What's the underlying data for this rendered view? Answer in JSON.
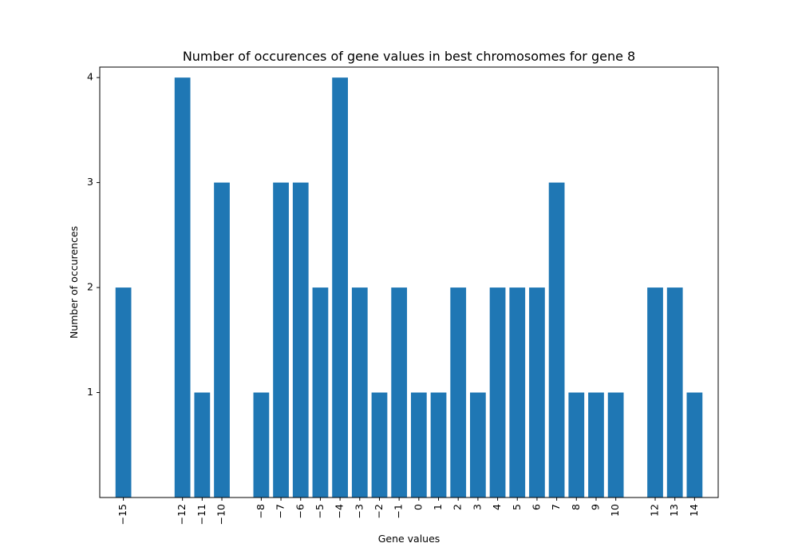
{
  "chart_data": {
    "type": "bar",
    "title": "Number of occurences of gene values in best chromosomes for gene 8",
    "xlabel": "Gene values",
    "ylabel": "Number of occurences",
    "x": [
      -15,
      -12,
      -11,
      -10,
      -8,
      -7,
      -6,
      -5,
      -4,
      -3,
      -2,
      -1,
      0,
      1,
      2,
      3,
      4,
      5,
      6,
      7,
      8,
      9,
      10,
      12,
      13,
      14
    ],
    "x_tick_labels": [
      "−15",
      "−12",
      "−11",
      "−10",
      "−8",
      "−7",
      "−6",
      "−5",
      "−4",
      "−3",
      "−2",
      "−1",
      "0",
      "1",
      "2",
      "3",
      "4",
      "5",
      "6",
      "7",
      "8",
      "9",
      "10",
      "12",
      "13",
      "14"
    ],
    "values": [
      2,
      4,
      1,
      3,
      1,
      3,
      3,
      2,
      4,
      2,
      1,
      2,
      1,
      1,
      2,
      1,
      2,
      2,
      2,
      3,
      1,
      1,
      1,
      2,
      2,
      1
    ],
    "yticks": [
      1,
      2,
      3,
      4
    ],
    "xlim": [
      -16.2,
      15.2
    ],
    "ylim": [
      0,
      4.1
    ],
    "bar_color": "#1f77b4",
    "grid": false,
    "legend": "none"
  }
}
